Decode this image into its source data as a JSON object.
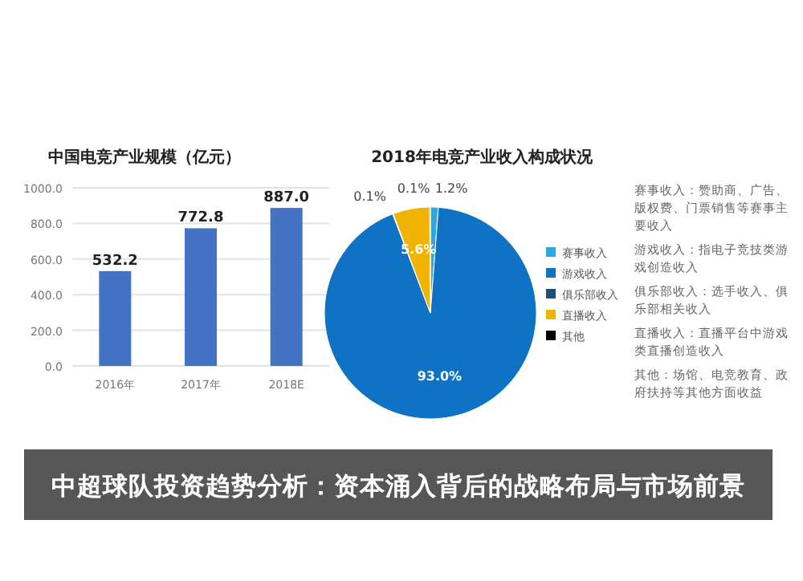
{
  "chart_data": [
    {
      "type": "bar",
      "title": "中国电竞产业规模（亿元）",
      "categories": [
        "2016年",
        "2017年",
        "2018E"
      ],
      "values": [
        532.2,
        772.8,
        887.0
      ],
      "value_labels": [
        "532.2",
        "772.8",
        "887.0"
      ],
      "color": "#4472c4",
      "ylim": [
        0,
        1000
      ],
      "yticks": [
        {
          "value": 0,
          "label": "0.0"
        },
        {
          "value": 200,
          "label": "200.0"
        },
        {
          "value": 400,
          "label": "400.0"
        },
        {
          "value": 600,
          "label": "600.0"
        },
        {
          "value": 800,
          "label": "800.0"
        },
        {
          "value": 1000,
          "label": "1000.0"
        }
      ],
      "grid": "y"
    },
    {
      "type": "pie",
      "title": "2018年电竞产业收入构成状况",
      "categories": [
        "赛事收入",
        "游戏收入",
        "俱乐部收入",
        "直播收入",
        "其他"
      ],
      "values": [
        1.2,
        93.0,
        0.1,
        5.6,
        0.1
      ],
      "value_labels": [
        "1.2%",
        "93.0%",
        "0.1%",
        "5.6%",
        "0.1%"
      ],
      "colors": [
        "#2ea8e0",
        "#0f72c4",
        "#1f4e79",
        "#f0b400",
        "#000000"
      ],
      "legend": "right",
      "annotations": [
        "赛事收入：赞助商、广告、版权费、门票销售等赛事主要收入",
        "游戏收入：指电子竞技类游戏创造收入",
        "俱乐部收入：选手收入、俱乐部相关收入",
        "直播收入：直播平台中游戏类直播创造收入",
        "其他：场馆、电竞教育、政府扶持等其他方面收益"
      ]
    },
    {
      "type": "other",
      "title": "中超球队投资趋势分析：资本涌入背后的战略布局与市场前景"
    }
  ]
}
